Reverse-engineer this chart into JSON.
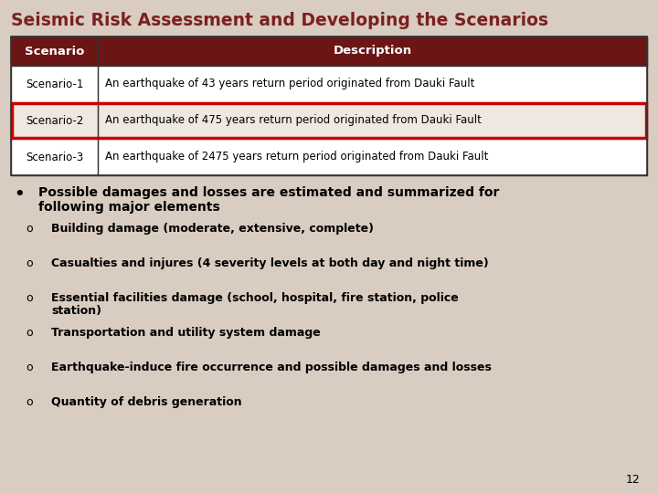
{
  "title": "Seismic Risk Assessment and Developing the Scenarios",
  "title_color": "#7B2020",
  "title_fontsize": 13.5,
  "background_color": "#D9CCC0",
  "table_header_bg": "#6B1515",
  "table_header_text_color": "#FFFFFF",
  "table_header_fontsize": 9.5,
  "table_text_color": "#000000",
  "table_text_fontsize": 8.5,
  "table_border_color": "#333333",
  "highlight_row": 1,
  "highlight_color": "#CC0000",
  "scenarios": [
    [
      "Scenario-1",
      "An earthquake of 43 years return period originated from Dauki Fault"
    ],
    [
      "Scenario-2",
      "An earthquake of 475 years return period originated from Dauki Fault"
    ],
    [
      "Scenario-3",
      "An earthquake of 2475 years return period originated from Dauki Fault"
    ]
  ],
  "bullet_main_line1": "Possible damages and losses are estimated and summarized for",
  "bullet_main_line2": "following major elements",
  "bullet_items": [
    "Building damage (moderate, extensive, complete)",
    "Casualties and injures (4 severity levels at both day and night time)",
    "Essential facilities damage (school, hospital, fire station, police\nstation)",
    "Transportation and utility system damage",
    "Earthquake-induce fire occurrence and possible damages and losses",
    "Quantity of debris generation"
  ],
  "page_number": "12",
  "bullet_fontsize": 9,
  "main_bullet_fontsize": 10
}
